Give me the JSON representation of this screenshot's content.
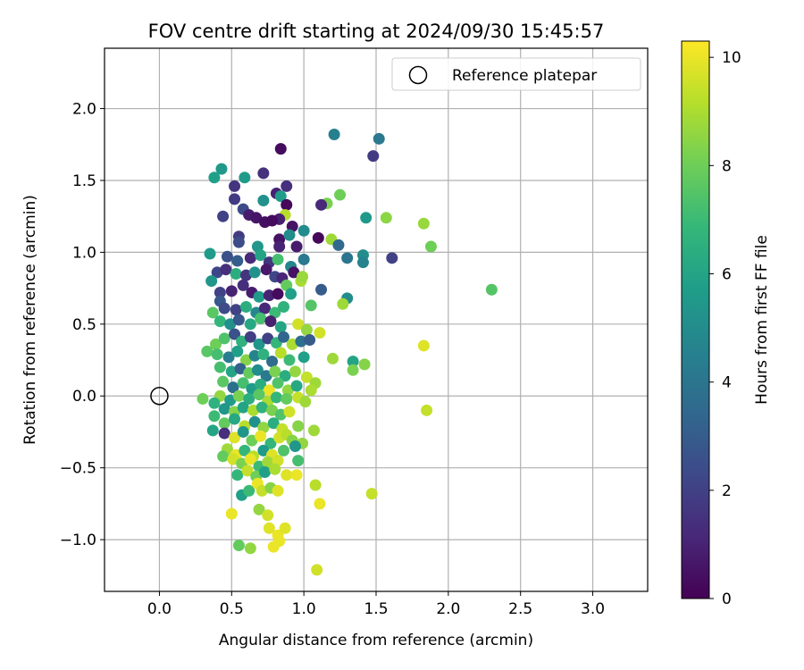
{
  "chart_data": {
    "type": "scatter",
    "title": "FOV centre drift starting at 2024/09/30 15:45:57",
    "xlabel": "Angular distance from reference (arcmin)",
    "ylabel": "Rotation from reference (arcmin)",
    "xlim": [
      -0.38,
      3.38
    ],
    "ylim": [
      -1.36,
      2.42
    ],
    "xticks": [
      0.0,
      0.5,
      1.0,
      1.5,
      2.0,
      2.5,
      3.0
    ],
    "yticks": [
      -1.0,
      -0.5,
      0.0,
      0.5,
      1.0,
      1.5,
      2.0
    ],
    "grid": true,
    "legend": {
      "position": "top-right",
      "entries": [
        "Reference platepar"
      ]
    },
    "reference_point": {
      "x": 0.0,
      "y": 0.0,
      "label": "Reference platepar"
    },
    "colorbar": {
      "label": "Hours from first FF file",
      "range": [
        0,
        10.3
      ],
      "ticks": [
        0,
        2,
        4,
        6,
        8,
        10
      ],
      "colormap": "viridis",
      "colors": [
        "#440154",
        "#482878",
        "#3e4989",
        "#31688e",
        "#26828e",
        "#1f9e89",
        "#35b779",
        "#6ece58",
        "#b5de2b",
        "#fde725"
      ]
    },
    "points": [
      {
        "x": 0.84,
        "y": 1.72,
        "h": 0.3
      },
      {
        "x": 1.21,
        "y": 1.82,
        "h": 4.5
      },
      {
        "x": 1.52,
        "y": 1.79,
        "h": 4.2
      },
      {
        "x": 1.48,
        "y": 1.67,
        "h": 1.8
      },
      {
        "x": 0.43,
        "y": 1.58,
        "h": 5.5
      },
      {
        "x": 0.38,
        "y": 1.52,
        "h": 5.8
      },
      {
        "x": 0.72,
        "y": 1.55,
        "h": 1.5
      },
      {
        "x": 0.59,
        "y": 1.52,
        "h": 5.6
      },
      {
        "x": 0.52,
        "y": 1.46,
        "h": 1.6
      },
      {
        "x": 0.88,
        "y": 1.46,
        "h": 1.4
      },
      {
        "x": 0.81,
        "y": 1.41,
        "h": 1.0
      },
      {
        "x": 0.84,
        "y": 1.39,
        "h": 5.7
      },
      {
        "x": 1.16,
        "y": 1.34,
        "h": 8.2
      },
      {
        "x": 1.25,
        "y": 1.4,
        "h": 8.0
      },
      {
        "x": 1.12,
        "y": 1.33,
        "h": 1.2
      },
      {
        "x": 0.88,
        "y": 1.33,
        "h": 0.2
      },
      {
        "x": 0.52,
        "y": 1.37,
        "h": 1.8
      },
      {
        "x": 0.72,
        "y": 1.36,
        "h": 5.2
      },
      {
        "x": 0.58,
        "y": 1.3,
        "h": 2.4
      },
      {
        "x": 0.44,
        "y": 1.25,
        "h": 2.0
      },
      {
        "x": 0.62,
        "y": 1.26,
        "h": 0.8
      },
      {
        "x": 0.67,
        "y": 1.24,
        "h": 0.6
      },
      {
        "x": 0.73,
        "y": 1.21,
        "h": 0.4
      },
      {
        "x": 0.87,
        "y": 1.26,
        "h": 9.2
      },
      {
        "x": 0.83,
        "y": 1.23,
        "h": 0.9
      },
      {
        "x": 0.92,
        "y": 1.18,
        "h": 0.5
      },
      {
        "x": 0.78,
        "y": 1.22,
        "h": 0.3
      },
      {
        "x": 1.43,
        "y": 1.24,
        "h": 5.5
      },
      {
        "x": 1.57,
        "y": 1.24,
        "h": 8.5
      },
      {
        "x": 1.83,
        "y": 1.2,
        "h": 8.7
      },
      {
        "x": 1.88,
        "y": 1.04,
        "h": 8.0
      },
      {
        "x": 1.0,
        "y": 1.15,
        "h": 5.0
      },
      {
        "x": 1.1,
        "y": 1.1,
        "h": 0.2
      },
      {
        "x": 1.19,
        "y": 1.09,
        "h": 8.8
      },
      {
        "x": 1.24,
        "y": 1.05,
        "h": 3.5
      },
      {
        "x": 1.3,
        "y": 0.96,
        "h": 4.0
      },
      {
        "x": 1.41,
        "y": 0.98,
        "h": 5.0
      },
      {
        "x": 1.41,
        "y": 0.93,
        "h": 4.6
      },
      {
        "x": 1.61,
        "y": 0.96,
        "h": 2.0
      },
      {
        "x": 2.3,
        "y": 0.74,
        "h": 7.5
      },
      {
        "x": 0.55,
        "y": 1.11,
        "h": 1.8
      },
      {
        "x": 0.55,
        "y": 1.07,
        "h": 2.4
      },
      {
        "x": 0.68,
        "y": 1.04,
        "h": 5.4
      },
      {
        "x": 0.83,
        "y": 1.09,
        "h": 0.5
      },
      {
        "x": 0.83,
        "y": 1.04,
        "h": 1.0
      },
      {
        "x": 0.9,
        "y": 1.12,
        "h": 5.0
      },
      {
        "x": 0.95,
        "y": 1.04,
        "h": 0.8
      },
      {
        "x": 0.35,
        "y": 0.99,
        "h": 5.6
      },
      {
        "x": 0.47,
        "y": 0.97,
        "h": 2.6
      },
      {
        "x": 0.54,
        "y": 0.94,
        "h": 3.0
      },
      {
        "x": 0.63,
        "y": 0.96,
        "h": 1.2
      },
      {
        "x": 0.7,
        "y": 0.98,
        "h": 6.0
      },
      {
        "x": 0.76,
        "y": 0.93,
        "h": 1.6
      },
      {
        "x": 0.82,
        "y": 0.95,
        "h": 7.2
      },
      {
        "x": 0.91,
        "y": 0.9,
        "h": 4.8
      },
      {
        "x": 1.0,
        "y": 0.95,
        "h": 4.2
      },
      {
        "x": 0.4,
        "y": 0.86,
        "h": 2.2
      },
      {
        "x": 0.46,
        "y": 0.88,
        "h": 1.4
      },
      {
        "x": 0.53,
        "y": 0.85,
        "h": 6.4
      },
      {
        "x": 0.6,
        "y": 0.84,
        "h": 1.6
      },
      {
        "x": 0.66,
        "y": 0.86,
        "h": 5.2
      },
      {
        "x": 0.74,
        "y": 0.88,
        "h": 0.7
      },
      {
        "x": 0.8,
        "y": 0.83,
        "h": 2.2
      },
      {
        "x": 0.85,
        "y": 0.82,
        "h": 1.1
      },
      {
        "x": 0.93,
        "y": 0.86,
        "h": 0.5
      },
      {
        "x": 0.98,
        "y": 0.8,
        "h": 9.0
      },
      {
        "x": 0.99,
        "y": 0.83,
        "h": 8.7
      },
      {
        "x": 1.12,
        "y": 0.74,
        "h": 3.0
      },
      {
        "x": 1.3,
        "y": 0.68,
        "h": 5.0
      },
      {
        "x": 1.27,
        "y": 0.64,
        "h": 8.8
      },
      {
        "x": 1.05,
        "y": 0.63,
        "h": 7.5
      },
      {
        "x": 0.36,
        "y": 0.8,
        "h": 5.4
      },
      {
        "x": 0.42,
        "y": 0.72,
        "h": 2.0
      },
      {
        "x": 0.42,
        "y": 0.66,
        "h": 2.8
      },
      {
        "x": 0.5,
        "y": 0.73,
        "h": 1.0
      },
      {
        "x": 0.58,
        "y": 0.77,
        "h": 1.4
      },
      {
        "x": 0.64,
        "y": 0.72,
        "h": 0.8
      },
      {
        "x": 0.69,
        "y": 0.69,
        "h": 5.6
      },
      {
        "x": 0.76,
        "y": 0.7,
        "h": 1.0
      },
      {
        "x": 0.82,
        "y": 0.71,
        "h": 0.3
      },
      {
        "x": 0.88,
        "y": 0.77,
        "h": 7.8
      },
      {
        "x": 0.91,
        "y": 0.71,
        "h": 5.8
      },
      {
        "x": 0.45,
        "y": 0.61,
        "h": 2.4
      },
      {
        "x": 0.37,
        "y": 0.58,
        "h": 7.6
      },
      {
        "x": 0.53,
        "y": 0.6,
        "h": 2.0
      },
      {
        "x": 0.6,
        "y": 0.62,
        "h": 6.4
      },
      {
        "x": 0.67,
        "y": 0.58,
        "h": 4.8
      },
      {
        "x": 0.73,
        "y": 0.61,
        "h": 1.2
      },
      {
        "x": 0.8,
        "y": 0.58,
        "h": 7.0
      },
      {
        "x": 0.86,
        "y": 0.62,
        "h": 6.6
      },
      {
        "x": 0.42,
        "y": 0.52,
        "h": 6.8
      },
      {
        "x": 0.49,
        "y": 0.5,
        "h": 5.2
      },
      {
        "x": 0.55,
        "y": 0.53,
        "h": 2.8
      },
      {
        "x": 0.63,
        "y": 0.5,
        "h": 6.2
      },
      {
        "x": 0.7,
        "y": 0.54,
        "h": 7.2
      },
      {
        "x": 0.77,
        "y": 0.52,
        "h": 0.9
      },
      {
        "x": 0.84,
        "y": 0.48,
        "h": 6.0
      },
      {
        "x": 0.96,
        "y": 0.5,
        "h": 9.6
      },
      {
        "x": 1.02,
        "y": 0.46,
        "h": 8.6
      },
      {
        "x": 1.11,
        "y": 0.44,
        "h": 9.6
      },
      {
        "x": 1.83,
        "y": 0.35,
        "h": 9.8
      },
      {
        "x": 0.33,
        "y": 0.31,
        "h": 7.6
      },
      {
        "x": 0.39,
        "y": 0.36,
        "h": 8.0
      },
      {
        "x": 0.45,
        "y": 0.4,
        "h": 7.4
      },
      {
        "x": 0.52,
        "y": 0.43,
        "h": 2.6
      },
      {
        "x": 0.57,
        "y": 0.38,
        "h": 6.6
      },
      {
        "x": 0.63,
        "y": 0.41,
        "h": 1.9
      },
      {
        "x": 0.69,
        "y": 0.36,
        "h": 5.4
      },
      {
        "x": 0.75,
        "y": 0.4,
        "h": 2.0
      },
      {
        "x": 0.81,
        "y": 0.37,
        "h": 6.8
      },
      {
        "x": 0.86,
        "y": 0.41,
        "h": 3.4
      },
      {
        "x": 0.92,
        "y": 0.36,
        "h": 9.0
      },
      {
        "x": 0.98,
        "y": 0.38,
        "h": 3.8
      },
      {
        "x": 1.04,
        "y": 0.39,
        "h": 3.0
      },
      {
        "x": 0.4,
        "y": 0.29,
        "h": 7.2
      },
      {
        "x": 0.48,
        "y": 0.27,
        "h": 4.4
      },
      {
        "x": 0.54,
        "y": 0.31,
        "h": 5.8
      },
      {
        "x": 0.6,
        "y": 0.25,
        "h": 8.4
      },
      {
        "x": 0.66,
        "y": 0.28,
        "h": 4.6
      },
      {
        "x": 0.72,
        "y": 0.29,
        "h": 6.6
      },
      {
        "x": 0.78,
        "y": 0.24,
        "h": 3.6
      },
      {
        "x": 0.84,
        "y": 0.3,
        "h": 9.2
      },
      {
        "x": 0.9,
        "y": 0.25,
        "h": 7.0
      },
      {
        "x": 1.0,
        "y": 0.27,
        "h": 5.8
      },
      {
        "x": 1.2,
        "y": 0.26,
        "h": 8.8
      },
      {
        "x": 1.34,
        "y": 0.24,
        "h": 6.0
      },
      {
        "x": 1.42,
        "y": 0.22,
        "h": 8.4
      },
      {
        "x": 1.34,
        "y": 0.18,
        "h": 8.2
      },
      {
        "x": 0.42,
        "y": 0.2,
        "h": 7.2
      },
      {
        "x": 0.5,
        "y": 0.17,
        "h": 6.0
      },
      {
        "x": 0.56,
        "y": 0.19,
        "h": 3.2
      },
      {
        "x": 0.62,
        "y": 0.16,
        "h": 7.8
      },
      {
        "x": 0.68,
        "y": 0.18,
        "h": 5.0
      },
      {
        "x": 0.74,
        "y": 0.14,
        "h": 4.2
      },
      {
        "x": 0.8,
        "y": 0.17,
        "h": 8.2
      },
      {
        "x": 0.87,
        "y": 0.14,
        "h": 6.4
      },
      {
        "x": 0.94,
        "y": 0.17,
        "h": 8.6
      },
      {
        "x": 1.02,
        "y": 0.13,
        "h": 9.4
      },
      {
        "x": 1.08,
        "y": 0.09,
        "h": 8.8
      },
      {
        "x": 0.44,
        "y": 0.1,
        "h": 7.6
      },
      {
        "x": 0.51,
        "y": 0.06,
        "h": 3.8
      },
      {
        "x": 0.58,
        "y": 0.09,
        "h": 7.2
      },
      {
        "x": 0.64,
        "y": 0.05,
        "h": 5.6
      },
      {
        "x": 0.7,
        "y": 0.08,
        "h": 6.4
      },
      {
        "x": 0.76,
        "y": 0.04,
        "h": 10.0
      },
      {
        "x": 0.82,
        "y": 0.09,
        "h": 7.4
      },
      {
        "x": 0.89,
        "y": 0.04,
        "h": 8.6
      },
      {
        "x": 0.95,
        "y": 0.07,
        "h": 6.2
      },
      {
        "x": 1.05,
        "y": 0.04,
        "h": 9.0
      },
      {
        "x": 0.42,
        "y": 0.0,
        "h": 8.6
      },
      {
        "x": 0.49,
        "y": -0.03,
        "h": 5.6
      },
      {
        "x": 0.55,
        "y": 0.0,
        "h": 8.2
      },
      {
        "x": 0.62,
        "y": -0.02,
        "h": 6.4
      },
      {
        "x": 0.69,
        "y": 0.01,
        "h": 7.6
      },
      {
        "x": 0.75,
        "y": -0.04,
        "h": 9.0
      },
      {
        "x": 0.81,
        "y": -0.01,
        "h": 6.8
      },
      {
        "x": 0.88,
        "y": -0.02,
        "h": 7.8
      },
      {
        "x": 0.96,
        "y": -0.01,
        "h": 9.4
      },
      {
        "x": 1.01,
        "y": -0.04,
        "h": 8.8
      },
      {
        "x": 0.3,
        "y": -0.02,
        "h": 8.0
      },
      {
        "x": 0.38,
        "y": -0.05,
        "h": 6.6
      },
      {
        "x": 0.45,
        "y": -0.09,
        "h": 5.4
      },
      {
        "x": 0.52,
        "y": -0.11,
        "h": 8.4
      },
      {
        "x": 0.58,
        "y": -0.08,
        "h": 6.0
      },
      {
        "x": 0.65,
        "y": -0.1,
        "h": 9.0
      },
      {
        "x": 0.71,
        "y": -0.08,
        "h": 6.6
      },
      {
        "x": 0.78,
        "y": -0.1,
        "h": 8.2
      },
      {
        "x": 0.84,
        "y": -0.13,
        "h": 7.4
      },
      {
        "x": 0.9,
        "y": -0.11,
        "h": 9.6
      },
      {
        "x": 1.85,
        "y": -0.1,
        "h": 9.4
      },
      {
        "x": 0.38,
        "y": -0.14,
        "h": 7.0
      },
      {
        "x": 0.45,
        "y": -0.19,
        "h": 7.8
      },
      {
        "x": 0.52,
        "y": -0.16,
        "h": 6.2
      },
      {
        "x": 0.59,
        "y": -0.21,
        "h": 9.2
      },
      {
        "x": 0.66,
        "y": -0.18,
        "h": 5.2
      },
      {
        "x": 0.72,
        "y": -0.22,
        "h": 8.6
      },
      {
        "x": 0.79,
        "y": -0.19,
        "h": 6.4
      },
      {
        "x": 0.85,
        "y": -0.23,
        "h": 9.4
      },
      {
        "x": 0.96,
        "y": -0.21,
        "h": 8.4
      },
      {
        "x": 0.37,
        "y": -0.24,
        "h": 6.0
      },
      {
        "x": 0.45,
        "y": -0.26,
        "h": 1.4
      },
      {
        "x": 0.52,
        "y": -0.29,
        "h": 9.8
      },
      {
        "x": 0.58,
        "y": -0.25,
        "h": 5.4
      },
      {
        "x": 0.64,
        "y": -0.31,
        "h": 8.0
      },
      {
        "x": 0.7,
        "y": -0.28,
        "h": 10.0
      },
      {
        "x": 0.77,
        "y": -0.33,
        "h": 6.8
      },
      {
        "x": 0.83,
        "y": -0.29,
        "h": 9.6
      },
      {
        "x": 0.88,
        "y": -0.27,
        "h": 9.2
      },
      {
        "x": 0.92,
        "y": -0.31,
        "h": 8.4
      },
      {
        "x": 0.99,
        "y": -0.33,
        "h": 8.6
      },
      {
        "x": 1.07,
        "y": -0.24,
        "h": 8.8
      },
      {
        "x": 0.47,
        "y": -0.37,
        "h": 8.8
      },
      {
        "x": 0.53,
        "y": -0.41,
        "h": 10.0
      },
      {
        "x": 0.59,
        "y": -0.38,
        "h": 6.8
      },
      {
        "x": 0.65,
        "y": -0.42,
        "h": 9.2
      },
      {
        "x": 0.72,
        "y": -0.38,
        "h": 5.6
      },
      {
        "x": 0.78,
        "y": -0.41,
        "h": 9.8
      },
      {
        "x": 0.86,
        "y": -0.38,
        "h": 7.4
      },
      {
        "x": 0.94,
        "y": -0.35,
        "h": 5.4
      },
      {
        "x": 0.44,
        "y": -0.42,
        "h": 7.8
      },
      {
        "x": 0.51,
        "y": -0.44,
        "h": 9.6
      },
      {
        "x": 0.57,
        "y": -0.47,
        "h": 8.2
      },
      {
        "x": 0.63,
        "y": -0.44,
        "h": 10.0
      },
      {
        "x": 0.69,
        "y": -0.49,
        "h": 7.0
      },
      {
        "x": 0.75,
        "y": -0.46,
        "h": 8.8
      },
      {
        "x": 0.82,
        "y": -0.45,
        "h": 9.6
      },
      {
        "x": 0.96,
        "y": -0.45,
        "h": 7.2
      },
      {
        "x": 0.54,
        "y": -0.55,
        "h": 6.8
      },
      {
        "x": 0.61,
        "y": -0.52,
        "h": 9.4
      },
      {
        "x": 0.67,
        "y": -0.56,
        "h": 8.0
      },
      {
        "x": 0.73,
        "y": -0.53,
        "h": 5.8
      },
      {
        "x": 0.8,
        "y": -0.51,
        "h": 9.0
      },
      {
        "x": 0.88,
        "y": -0.55,
        "h": 9.8
      },
      {
        "x": 0.95,
        "y": -0.55,
        "h": 10.0
      },
      {
        "x": 0.57,
        "y": -0.69,
        "h": 5.8
      },
      {
        "x": 0.62,
        "y": -0.66,
        "h": 7.0
      },
      {
        "x": 0.68,
        "y": -0.61,
        "h": 10.0
      },
      {
        "x": 0.71,
        "y": -0.66,
        "h": 9.4
      },
      {
        "x": 0.77,
        "y": -0.64,
        "h": 8.4
      },
      {
        "x": 0.82,
        "y": -0.66,
        "h": 9.8
      },
      {
        "x": 1.08,
        "y": -0.62,
        "h": 9.2
      },
      {
        "x": 1.47,
        "y": -0.68,
        "h": 9.4
      },
      {
        "x": 0.5,
        "y": -0.82,
        "h": 10.0
      },
      {
        "x": 0.69,
        "y": -0.79,
        "h": 8.6
      },
      {
        "x": 0.75,
        "y": -0.83,
        "h": 9.6
      },
      {
        "x": 1.11,
        "y": -0.75,
        "h": 10.0
      },
      {
        "x": 0.76,
        "y": -0.92,
        "h": 9.8
      },
      {
        "x": 0.82,
        "y": -0.97,
        "h": 10.0
      },
      {
        "x": 0.87,
        "y": -0.92,
        "h": 9.8
      },
      {
        "x": 0.79,
        "y": -1.05,
        "h": 10.0
      },
      {
        "x": 0.83,
        "y": -1.01,
        "h": 10.0
      },
      {
        "x": 0.55,
        "y": -1.04,
        "h": 7.8
      },
      {
        "x": 0.63,
        "y": -1.06,
        "h": 8.6
      },
      {
        "x": 1.09,
        "y": -1.21,
        "h": 9.6
      }
    ]
  }
}
